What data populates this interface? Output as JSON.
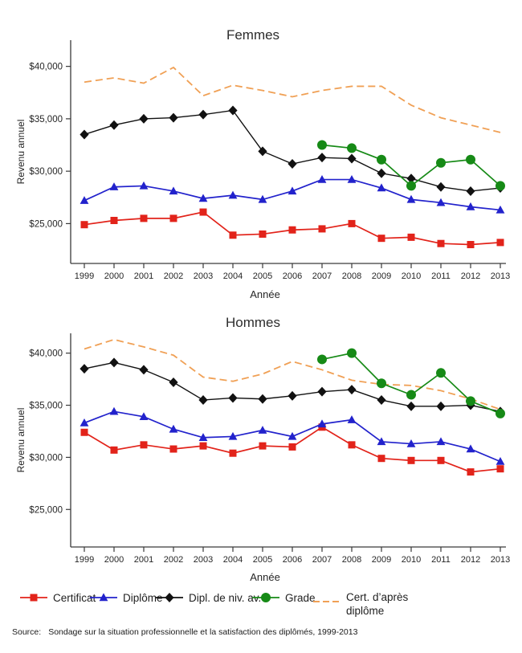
{
  "colors": {
    "certificat": "#e2231a",
    "diplome": "#2222cc",
    "dipl_niv_av": "#111111",
    "grade": "#168a16",
    "cert_apres": "#f0a055",
    "axis": "#3a3a3a",
    "text": "#262626"
  },
  "chart_data": [
    {
      "type": "line",
      "title": "Femmes",
      "xlabel": "Année",
      "ylabel": "Revenu annuel",
      "x": [
        1999,
        2000,
        2001,
        2002,
        2003,
        2004,
        2005,
        2006,
        2007,
        2008,
        2009,
        2010,
        2011,
        2012,
        2013
      ],
      "ylim": [
        21200,
        42500
      ],
      "grid": false,
      "yticks": [
        {
          "value": 40000,
          "label": "$40,000"
        },
        {
          "value": 35000,
          "label": "$35,000"
        },
        {
          "value": 30000,
          "label": "$30,000"
        },
        {
          "value": 25000,
          "label": "$25,000"
        }
      ],
      "series": [
        {
          "name": "Cert. d’après diplôme",
          "marker": "none",
          "dashed": true,
          "color_key": "cert_apres",
          "values": [
            38500,
            38900,
            38400,
            39900,
            37200,
            38200,
            37700,
            37100,
            37700,
            38100,
            38100,
            36300,
            35100,
            34400,
            33700
          ]
        },
        {
          "name": "Certificat",
          "marker": "square",
          "dashed": false,
          "color_key": "certificat",
          "values": [
            24900,
            25300,
            25500,
            25500,
            26100,
            23900,
            24000,
            24400,
            24500,
            25000,
            23600,
            23700,
            23100,
            23000,
            23200
          ]
        },
        {
          "name": "Diplôme",
          "marker": "triangle",
          "dashed": false,
          "color_key": "diplome",
          "values": [
            27200,
            28500,
            28600,
            28100,
            27400,
            27700,
            27300,
            28100,
            29200,
            29200,
            28400,
            27300,
            27000,
            26600,
            26300
          ]
        },
        {
          "name": "Dipl. de niv. av.",
          "marker": "diamond",
          "dashed": false,
          "color_key": "dipl_niv_av",
          "values": [
            33500,
            34400,
            35000,
            35100,
            35400,
            35800,
            31900,
            30700,
            31300,
            31200,
            29800,
            29300,
            28500,
            28100,
            28400
          ]
        },
        {
          "name": "Grade",
          "marker": "circle",
          "dashed": false,
          "color_key": "grade",
          "values": [
            null,
            null,
            null,
            null,
            null,
            null,
            null,
            null,
            32500,
            32200,
            31100,
            28600,
            30800,
            31100,
            28600
          ]
        }
      ]
    },
    {
      "type": "line",
      "title": "Hommes",
      "xlabel": "Année",
      "ylabel": "Revenu annuel",
      "x": [
        1999,
        2000,
        2001,
        2002,
        2003,
        2004,
        2005,
        2006,
        2007,
        2008,
        2009,
        2010,
        2011,
        2012,
        2013
      ],
      "ylim": [
        21400,
        41900
      ],
      "grid": false,
      "yticks": [
        {
          "value": 40000,
          "label": "$40,000"
        },
        {
          "value": 35000,
          "label": "$35,000"
        },
        {
          "value": 30000,
          "label": "$30,000"
        },
        {
          "value": 25000,
          "label": "$25,000"
        }
      ],
      "series": [
        {
          "name": "Cert. d’après diplôme",
          "marker": "none",
          "dashed": true,
          "color_key": "cert_apres",
          "values": [
            40400,
            41300,
            40600,
            39800,
            37700,
            37300,
            38000,
            39200,
            38400,
            37400,
            37000,
            36900,
            36400,
            35600,
            34600
          ]
        },
        {
          "name": "Certificat",
          "marker": "square",
          "dashed": false,
          "color_key": "certificat",
          "values": [
            32400,
            30700,
            31200,
            30800,
            31100,
            30400,
            31100,
            31000,
            32900,
            31200,
            29900,
            29700,
            29700,
            28600,
            28900
          ]
        },
        {
          "name": "Diplôme",
          "marker": "triangle",
          "dashed": false,
          "color_key": "diplome",
          "values": [
            33300,
            34400,
            33900,
            32700,
            31900,
            32000,
            32600,
            32000,
            33200,
            33600,
            31500,
            31300,
            31500,
            30800,
            29600
          ]
        },
        {
          "name": "Dipl. de niv. av.",
          "marker": "diamond",
          "dashed": false,
          "color_key": "dipl_niv_av",
          "values": [
            38500,
            39100,
            38400,
            37200,
            35500,
            35700,
            35600,
            35900,
            36300,
            36500,
            35500,
            34900,
            34900,
            35000,
            34400
          ]
        },
        {
          "name": "Grade",
          "marker": "circle",
          "dashed": false,
          "color_key": "grade",
          "values": [
            null,
            null,
            null,
            null,
            null,
            null,
            null,
            null,
            39400,
            40000,
            37100,
            36000,
            38100,
            35400,
            34200
          ]
        }
      ]
    }
  ],
  "legend": {
    "items": [
      {
        "label": "Certificat",
        "marker": "square",
        "color_key": "certificat"
      },
      {
        "label": "Diplôme",
        "marker": "triangle",
        "color_key": "diplome"
      },
      {
        "label": "Dipl. de niv. av.",
        "marker": "diamond",
        "color_key": "dipl_niv_av"
      },
      {
        "label": "Grade",
        "marker": "circle",
        "color_key": "grade"
      },
      {
        "label": "Cert. d’après diplôme",
        "marker": "dash",
        "color_key": "cert_apres"
      }
    ]
  },
  "source": {
    "label": "Source:",
    "text": "Sondage sur la situation professionnelle et la satisfaction des diplômés, 1999-2013"
  }
}
